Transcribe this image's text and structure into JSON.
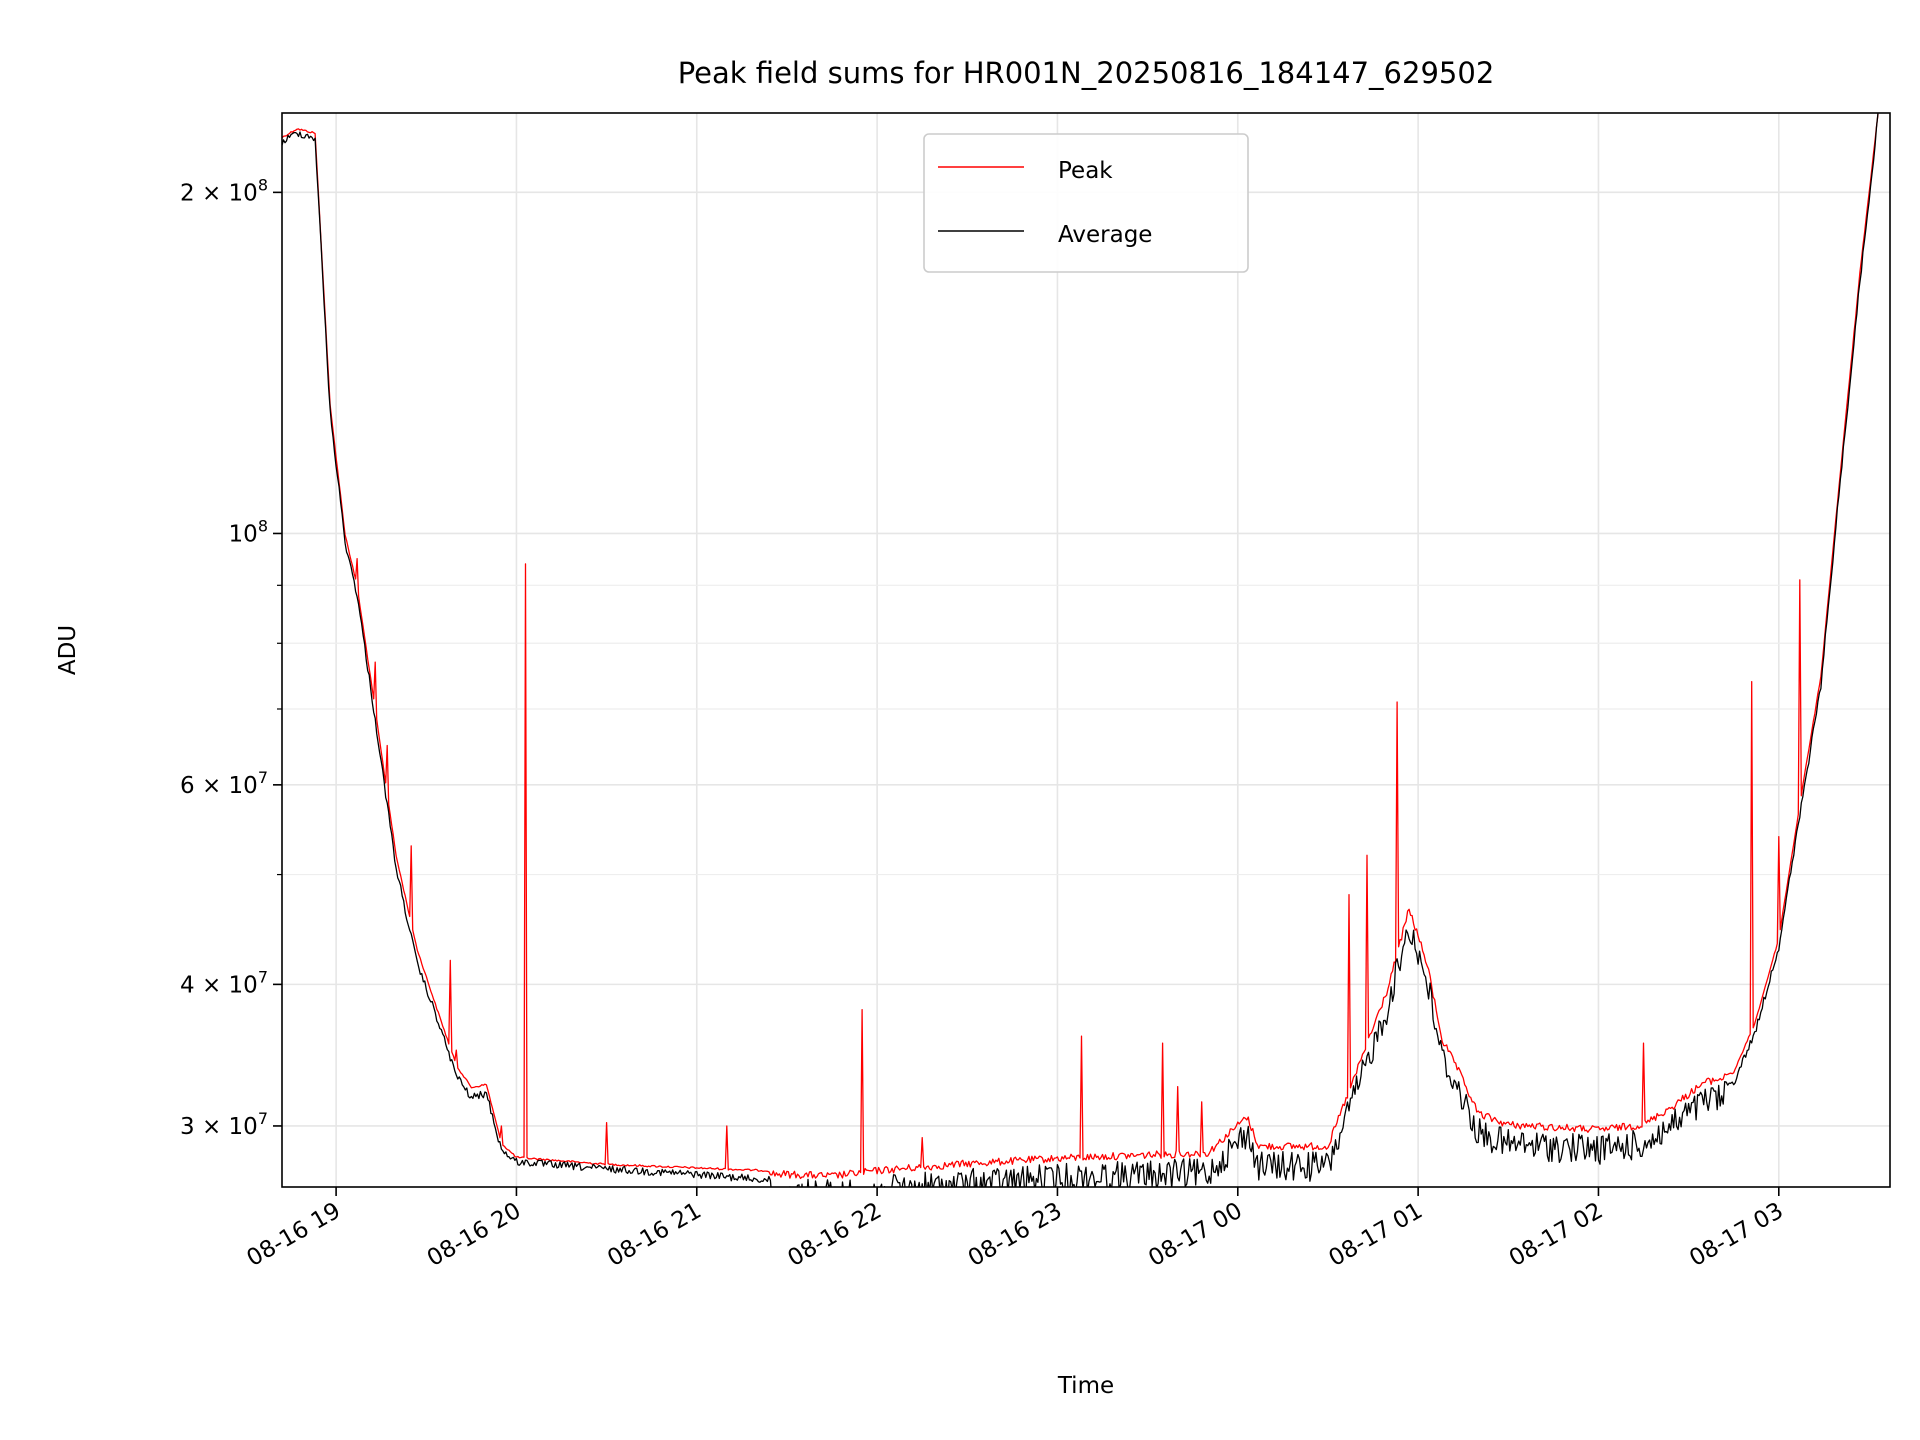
{
  "chart_data": {
    "type": "line",
    "title": "Peak field sums for HR001N_20250816_184147_629502",
    "xlabel": "Time",
    "ylabel": "ADU",
    "yscale": "log",
    "grid": true,
    "legend_position": "upper center",
    "xlim": [
      "2025-08-16 18:42",
      "2025-08-17 03:37"
    ],
    "ylim": [
      26500000,
      235000000
    ],
    "x_ticks": [
      {
        "value": "2025-08-16 19:00",
        "label": "08-16 19"
      },
      {
        "value": "2025-08-16 20:00",
        "label": "08-16 20"
      },
      {
        "value": "2025-08-16 21:00",
        "label": "08-16 21"
      },
      {
        "value": "2025-08-16 22:00",
        "label": "08-16 22"
      },
      {
        "value": "2025-08-16 23:00",
        "label": "08-16 23"
      },
      {
        "value": "2025-08-17 00:00",
        "label": "08-17 00"
      },
      {
        "value": "2025-08-17 01:00",
        "label": "08-17 01"
      },
      {
        "value": "2025-08-17 02:00",
        "label": "08-17 02"
      },
      {
        "value": "2025-08-17 03:00",
        "label": "08-17 03"
      }
    ],
    "y_major_ticks": [
      {
        "value": 100000000,
        "base": "10",
        "exp": "8",
        "mantissa": ""
      },
      {
        "value": 30000000,
        "base": "10",
        "exp": "7",
        "mantissa": "3"
      },
      {
        "value": 40000000,
        "base": "10",
        "exp": "7",
        "mantissa": "4"
      },
      {
        "value": 60000000,
        "base": "10",
        "exp": "7",
        "mantissa": "6"
      },
      {
        "value": 200000000,
        "base": "10",
        "exp": "8",
        "mantissa": "2"
      }
    ],
    "y_minor_ticks": [
      50000000,
      70000000,
      80000000,
      90000000
    ],
    "series": [
      {
        "name": "Peak",
        "color": "#ff0000",
        "baseline": [
          [
            "2025-08-16 18:42",
            224000000
          ],
          [
            "2025-08-16 18:47",
            228000000
          ],
          [
            "2025-08-16 18:53",
            226000000
          ],
          [
            "2025-08-16 18:58",
            130000000
          ],
          [
            "2025-08-16 19:03",
            100000000
          ],
          [
            "2025-08-16 19:07",
            90000000
          ],
          [
            "2025-08-16 19:13",
            70000000
          ],
          [
            "2025-08-16 19:20",
            52000000
          ],
          [
            "2025-08-16 19:27",
            43000000
          ],
          [
            "2025-08-16 19:33",
            38500000
          ],
          [
            "2025-08-16 19:40",
            34000000
          ],
          [
            "2025-08-16 19:45",
            32500000
          ],
          [
            "2025-08-16 19:50",
            32700000
          ],
          [
            "2025-08-16 19:55",
            29000000
          ],
          [
            "2025-08-16 20:00",
            28200000
          ],
          [
            "2025-08-16 20:30",
            27800000
          ],
          [
            "2025-08-16 21:00",
            27600000
          ],
          [
            "2025-08-16 21:30",
            27400000
          ],
          [
            "2025-08-16 21:45",
            27300000
          ],
          [
            "2025-08-16 22:00",
            27600000
          ],
          [
            "2025-08-16 22:30",
            28000000
          ],
          [
            "2025-08-16 23:00",
            28300000
          ],
          [
            "2025-08-16 23:30",
            28500000
          ],
          [
            "2025-08-16 23:50",
            28600000
          ],
          [
            "2025-08-17 00:03",
            30800000
          ],
          [
            "2025-08-17 00:07",
            29000000
          ],
          [
            "2025-08-17 00:30",
            29000000
          ],
          [
            "2025-08-17 00:40",
            34000000
          ],
          [
            "2025-08-17 00:50",
            40000000
          ],
          [
            "2025-08-17 00:57",
            47000000
          ],
          [
            "2025-08-17 01:03",
            42000000
          ],
          [
            "2025-08-17 01:08",
            36000000
          ],
          [
            "2025-08-17 01:13",
            34000000
          ],
          [
            "2025-08-17 01:20",
            31000000
          ],
          [
            "2025-08-17 01:30",
            30300000
          ],
          [
            "2025-08-17 02:00",
            30000000
          ],
          [
            "2025-08-17 02:15",
            30300000
          ],
          [
            "2025-08-17 02:25",
            31500000
          ],
          [
            "2025-08-17 02:35",
            33000000
          ],
          [
            "2025-08-17 02:45",
            33500000
          ],
          [
            "2025-08-17 02:52",
            37000000
          ],
          [
            "2025-08-17 03:00",
            44000000
          ],
          [
            "2025-08-17 03:08",
            60000000
          ],
          [
            "2025-08-17 03:14",
            75000000
          ],
          [
            "2025-08-17 03:20",
            110000000
          ],
          [
            "2025-08-17 03:27",
            170000000
          ],
          [
            "2025-08-17 03:33",
            235000000
          ]
        ],
        "spikes": [
          [
            "2025-08-16 19:07",
            95000000
          ],
          [
            "2025-08-16 19:13",
            77000000
          ],
          [
            "2025-08-16 19:17",
            65000000
          ],
          [
            "2025-08-16 19:25",
            53000000
          ],
          [
            "2025-08-16 19:38",
            42000000
          ],
          [
            "2025-08-16 19:40",
            35000000
          ],
          [
            "2025-08-16 19:55",
            30000000
          ],
          [
            "2025-08-16 20:03",
            94000000
          ],
          [
            "2025-08-16 20:30",
            30200000
          ],
          [
            "2025-08-16 21:10",
            30000000
          ],
          [
            "2025-08-16 21:55",
            38000000
          ],
          [
            "2025-08-16 22:15",
            29300000
          ],
          [
            "2025-08-16 23:08",
            36000000
          ],
          [
            "2025-08-16 23:35",
            35500000
          ],
          [
            "2025-08-16 23:40",
            32500000
          ],
          [
            "2025-08-16 23:48",
            31500000
          ],
          [
            "2025-08-17 00:37",
            48000000
          ],
          [
            "2025-08-17 00:43",
            52000000
          ],
          [
            "2025-08-17 00:53",
            71000000
          ],
          [
            "2025-08-17 02:15",
            35500000
          ],
          [
            "2025-08-17 02:51",
            74000000
          ],
          [
            "2025-08-17 03:00",
            54000000
          ],
          [
            "2025-08-17 03:07",
            91000000
          ]
        ]
      },
      {
        "name": "Average",
        "color": "#000000",
        "baseline": [
          [
            "2025-08-16 18:42",
            223000000
          ],
          [
            "2025-08-16 18:47",
            227500000
          ],
          [
            "2025-08-16 18:53",
            225000000
          ],
          [
            "2025-08-16 18:58",
            129000000
          ],
          [
            "2025-08-16 19:03",
            99000000
          ],
          [
            "2025-08-16 19:07",
            89000000
          ],
          [
            "2025-08-16 19:13",
            69000000
          ],
          [
            "2025-08-16 19:20",
            51000000
          ],
          [
            "2025-08-16 19:27",
            42000000
          ],
          [
            "2025-08-16 19:33",
            38000000
          ],
          [
            "2025-08-16 19:40",
            33500000
          ],
          [
            "2025-08-16 19:45",
            32000000
          ],
          [
            "2025-08-16 19:50",
            32300000
          ],
          [
            "2025-08-16 19:55",
            28800000
          ],
          [
            "2025-08-16 20:00",
            28100000
          ],
          [
            "2025-08-16 20:30",
            27700000
          ],
          [
            "2025-08-16 21:00",
            27400000
          ],
          [
            "2025-08-16 21:30",
            27000000
          ],
          [
            "2025-08-16 21:45",
            26900000
          ],
          [
            "2025-08-16 22:00",
            27100000
          ],
          [
            "2025-08-16 22:30",
            27500000
          ],
          [
            "2025-08-16 23:00",
            27800000
          ],
          [
            "2025-08-16 23:30",
            28000000
          ],
          [
            "2025-08-16 23:50",
            28100000
          ],
          [
            "2025-08-17 00:03",
            30500000
          ],
          [
            "2025-08-17 00:07",
            28500000
          ],
          [
            "2025-08-17 00:30",
            28500000
          ],
          [
            "2025-08-17 00:40",
            33500000
          ],
          [
            "2025-08-17 00:50",
            39500000
          ],
          [
            "2025-08-17 00:57",
            46500000
          ],
          [
            "2025-08-17 01:03",
            41500000
          ],
          [
            "2025-08-17 01:08",
            35500000
          ],
          [
            "2025-08-17 01:13",
            33500000
          ],
          [
            "2025-08-17 01:20",
            30500000
          ],
          [
            "2025-08-17 01:30",
            29800000
          ],
          [
            "2025-08-17 02:00",
            29500000
          ],
          [
            "2025-08-17 02:15",
            29800000
          ],
          [
            "2025-08-17 02:25",
            31000000
          ],
          [
            "2025-08-17 02:35",
            32500000
          ],
          [
            "2025-08-17 02:45",
            33000000
          ],
          [
            "2025-08-17 02:52",
            36500000
          ],
          [
            "2025-08-17 03:00",
            43500000
          ],
          [
            "2025-08-17 03:08",
            59000000
          ],
          [
            "2025-08-17 03:14",
            74000000
          ],
          [
            "2025-08-17 03:20",
            109000000
          ],
          [
            "2025-08-17 03:27",
            168000000
          ],
          [
            "2025-08-17 03:33",
            235000000
          ]
        ]
      }
    ]
  }
}
